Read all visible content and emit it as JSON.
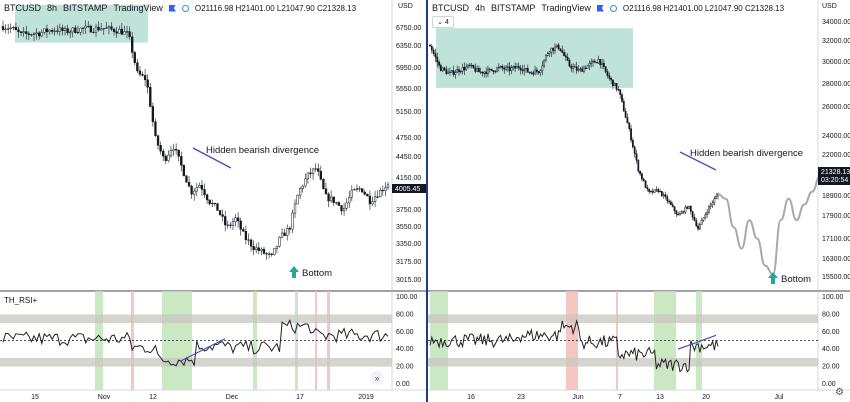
{
  "left": {
    "symbol": "BTCUSD",
    "interval": "8h",
    "exchange": "BITSTAMP",
    "brand": "TradingView",
    "ohlc": "O21116.98 H21401.00 L21047.90 C21328.13",
    "currency": "USD",
    "price_ticks": [
      "6750.00",
      "6350.00",
      "5950.00",
      "5550.00",
      "5150.00",
      "4750.00",
      "4450.00",
      "4150.00",
      "3750.00",
      "3550.00",
      "3350.00",
      "3175.00",
      "3015.00"
    ],
    "current_price": "4005.45",
    "time_ticks": [
      "15",
      "Nov",
      "12",
      "Dec",
      "17",
      "2019"
    ],
    "annotation_divergence": "Hidden bearish divergence",
    "annotation_bottom": "Bottom",
    "indicator_name": "TH_RSI+",
    "rsi_ticks": [
      "100.00",
      "80.00",
      "60.00",
      "40.00",
      "20.00",
      "0.00"
    ]
  },
  "right": {
    "symbol": "BTCUSD",
    "interval": "4h",
    "exchange": "BITSTAMP",
    "brand": "TradingView",
    "ohlc": "O21116.98 H21401.00 L21047.90 C21328.13",
    "dropdown_value": "4",
    "currency": "USD",
    "price_ticks": [
      "34000.00",
      "32000.00",
      "30000.00",
      "28000.00",
      "26000.00",
      "24000.00",
      "22000.00",
      "20100.00",
      "18900.00",
      "17900.00",
      "17100.00",
      "16300.00",
      "15500.00"
    ],
    "current_price": "21328.13",
    "countdown": "03:20:54",
    "time_ticks": [
      "16",
      "23",
      "Jun",
      "7",
      "13",
      "20",
      "Jul"
    ],
    "annotation_divergence": "Hidden bearish divergence",
    "annotation_bottom": "Bottom",
    "rsi_ticks": [
      "100.00",
      "80.00",
      "60.00",
      "40.00",
      "20.00",
      "0.00"
    ]
  },
  "colors": {
    "zone": "#bfe3d8",
    "divergence_line": "#3f51b5",
    "arrow": "#26a69a",
    "rsi_band": "#c8c5bf",
    "green_bar": "#bde3b4",
    "red_bar": "#f4b8b4",
    "projection": "#a9a9a9",
    "price_tag": "#131722"
  },
  "chart_data": [
    {
      "type": "candlestick",
      "title": "BTCUSD 8h BITSTAMP",
      "y_axis": "USD (log scale)",
      "x": [
        "15",
        "Nov",
        "12",
        "Dec",
        "17",
        "2019"
      ],
      "ylim": [
        3015,
        6750
      ],
      "close_path": [
        6460,
        6420,
        6300,
        6320,
        6330,
        6380,
        6400,
        6360,
        6390,
        6420,
        6410,
        6430,
        6400,
        6380,
        6300,
        5600,
        5500,
        4600,
        4300,
        4500,
        4200,
        3900,
        4000,
        3800,
        3700,
        3500,
        3600,
        3400,
        3300,
        3250,
        3200,
        3400,
        3500,
        3900,
        4100,
        4200,
        3850,
        3800,
        3700,
        3900,
        3950,
        3800,
        3900,
        4005.45
      ],
      "annotations": [
        "Hidden bearish divergence",
        "Bottom"
      ]
    },
    {
      "type": "candlestick",
      "title": "BTCUSD 4h BITSTAMP",
      "y_axis": "USD",
      "x": [
        "16",
        "23",
        "Jun",
        "7",
        "13",
        "20",
        "Jul"
      ],
      "ylim": [
        15500,
        34000
      ],
      "close_path": [
        31800,
        30200,
        29800,
        30100,
        30300,
        29900,
        30000,
        30200,
        30100,
        30300,
        29900,
        30000,
        31500,
        31700,
        30400,
        30000,
        30400,
        30800,
        29500,
        28600,
        26000,
        23000,
        21400,
        21600,
        20800,
        19800,
        20500,
        18900,
        20300,
        21328.13
      ],
      "projection": [
        21328,
        21000,
        19000,
        17500,
        19500,
        18200,
        16300,
        15700,
        19500,
        21000,
        19500,
        20600,
        21500,
        22600
      ],
      "annotations": [
        "Hidden bearish divergence",
        "Bottom"
      ]
    },
    {
      "type": "line",
      "title": "TH_RSI+",
      "ylim": [
        0,
        100
      ],
      "bands": [
        [
          70,
          80
        ],
        [
          20,
          30
        ]
      ],
      "midline": 50
    }
  ]
}
